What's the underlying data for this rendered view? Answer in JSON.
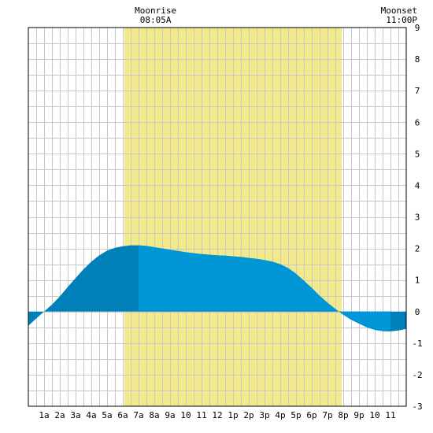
{
  "chart_data": {
    "type": "area",
    "title": "",
    "xlabel": "",
    "ylabel": "",
    "xlim": [
      0,
      24
    ],
    "ylim": [
      -3,
      9
    ],
    "grid": true,
    "x_ticks": [
      1,
      2,
      3,
      4,
      5,
      6,
      7,
      8,
      9,
      10,
      11,
      12,
      13,
      14,
      15,
      16,
      17,
      18,
      19,
      20,
      21,
      22,
      23
    ],
    "x_tick_labels": [
      "1a",
      "2a",
      "3a",
      "4a",
      "5a",
      "6a",
      "7a",
      "8a",
      "9a",
      "10",
      "11",
      "12",
      "1p",
      "2p",
      "3p",
      "4p",
      "5p",
      "6p",
      "7p",
      "8p",
      "9p",
      "10",
      "11"
    ],
    "y_ticks": [
      -3,
      -2,
      -1,
      0,
      1,
      2,
      3,
      4,
      5,
      6,
      7,
      8,
      9
    ],
    "y_tick_labels": [
      "-3",
      "-2",
      "-1",
      "0",
      "1",
      "2",
      "3",
      "4",
      "5",
      "6",
      "7",
      "8",
      "9"
    ],
    "daylight": {
      "start": 6.1,
      "end": 19.9
    },
    "moon_events": [
      {
        "label": "Moonrise",
        "time": "08:05A",
        "x": 8.08
      },
      {
        "label": "Moonset",
        "time": "11:00P",
        "x": 23.0
      }
    ],
    "series": [
      {
        "x": [
          0,
          0.5,
          1,
          1.5,
          2,
          2.5,
          3,
          3.5,
          4,
          4.5,
          5,
          5.5,
          6,
          6.5,
          7,
          7.5,
          8,
          8.5,
          9,
          9.5,
          10,
          10.5,
          11,
          11.5,
          12,
          12.5,
          13,
          13.5,
          14,
          14.5,
          15,
          15.5,
          16,
          16.5,
          17,
          17.5,
          18,
          18.5,
          19,
          19.5,
          20,
          20.5,
          21,
          21.5,
          22,
          22.5,
          23,
          23.5,
          24
        ],
        "values": [
          -0.45,
          -0.22,
          0.0,
          0.22,
          0.48,
          0.78,
          1.06,
          1.34,
          1.58,
          1.78,
          1.93,
          2.02,
          2.07,
          2.1,
          2.1,
          2.08,
          2.04,
          2.0,
          1.96,
          1.92,
          1.88,
          1.85,
          1.82,
          1.8,
          1.78,
          1.77,
          1.75,
          1.73,
          1.7,
          1.67,
          1.63,
          1.58,
          1.5,
          1.38,
          1.2,
          0.98,
          0.75,
          0.5,
          0.28,
          0.08,
          -0.1,
          -0.26,
          -0.38,
          -0.5,
          -0.58,
          -0.62,
          -0.63,
          -0.6,
          -0.55
        ]
      }
    ],
    "colors": {
      "night_fill": "#0080b8",
      "day_fill": "#0096d6",
      "daylight_band": "#f2ea8a",
      "grid": "#c8c8c8",
      "axis": "#000000"
    }
  }
}
